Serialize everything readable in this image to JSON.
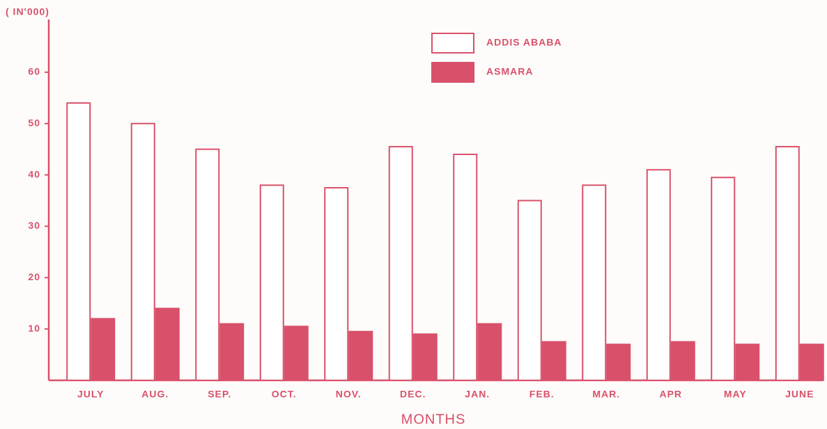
{
  "chart_data": {
    "type": "bar",
    "y_label": "( IN'000)",
    "x_label": "MONTHS",
    "categories": [
      "JULY",
      "AUG.",
      "SEP.",
      "OCT.",
      "NOV.",
      "DEC.",
      "JAN.",
      "FEB.",
      "MAR.",
      "APR",
      "MAY",
      "JUNE"
    ],
    "series": [
      {
        "name": "ADDIS ABABA",
        "color": "#ffffff",
        "values": [
          54,
          50,
          45,
          38,
          37.5,
          45.5,
          44,
          35,
          38,
          41,
          39.5,
          45.5
        ]
      },
      {
        "name": "ASMARA",
        "color": "#d9506a",
        "values": [
          12,
          14,
          11,
          10.5,
          9.5,
          9,
          11,
          7.5,
          7,
          7.5,
          7,
          7
        ]
      }
    ],
    "ylim": [
      0,
      70
    ],
    "yticks": [
      10,
      20,
      30,
      40,
      50,
      60
    ]
  }
}
